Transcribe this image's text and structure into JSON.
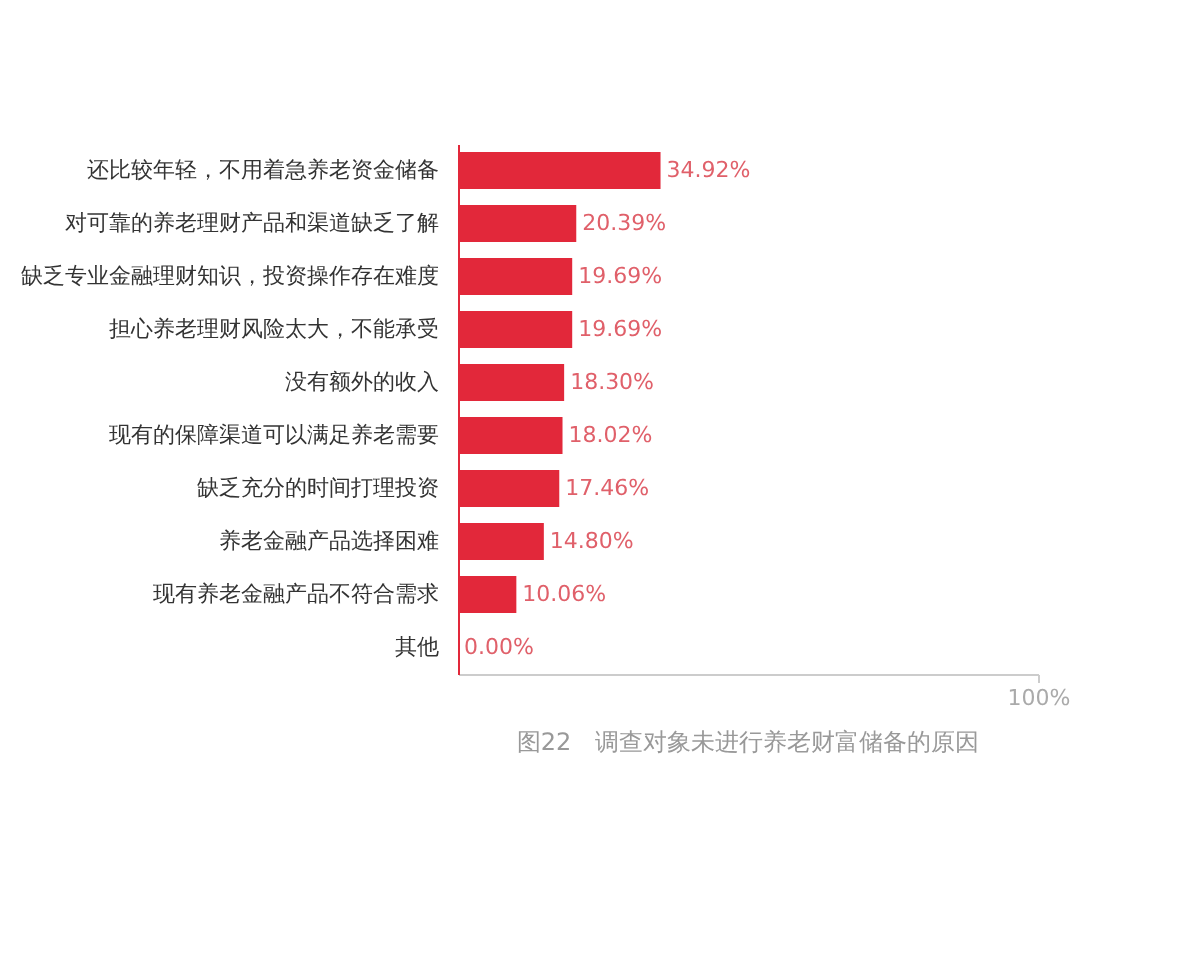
{
  "chart_data": {
    "type": "bar",
    "orientation": "horizontal",
    "categories": [
      "还比较年轻，不用着急养老资金储备",
      "对可靠的养老理财产品和渠道缺乏了解",
      "缺乏专业金融理财知识，投资操作存在难度",
      "担心养老理财风险太大，不能承受",
      "没有额外的收入",
      "现有的保障渠道可以满足养老需要",
      "缺乏充分的时间打理投资",
      "养老金融产品选择困难",
      "现有养老金融产品不符合需求",
      "其他"
    ],
    "values": [
      34.92,
      20.39,
      19.69,
      19.69,
      18.3,
      18.02,
      17.46,
      14.8,
      10.06,
      0
    ],
    "value_labels": [
      "34.92%",
      "20.39%",
      "19.69%",
      "19.69%",
      "18.30%",
      "18.02%",
      "17.46%",
      "14.80%",
      "10.06%",
      "0.00%"
    ],
    "color": "#e2283a",
    "xlim": [
      0,
      100
    ],
    "xticks": [
      {
        "value": 100,
        "label": "100%"
      }
    ],
    "grid": false,
    "annotations": [
      "图22　调查对象未进行养老财富储备的原因"
    ]
  }
}
